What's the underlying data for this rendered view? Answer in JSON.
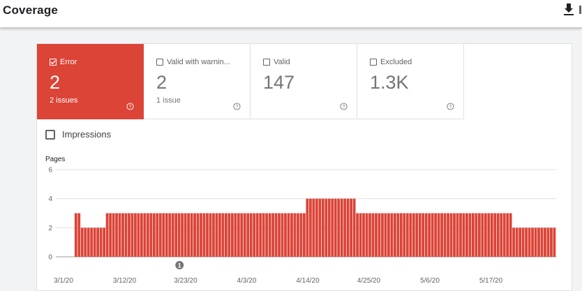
{
  "header": {
    "title": "Coverage",
    "download_icon": "download-icon"
  },
  "tiles": [
    {
      "label": "Error",
      "value": "2",
      "sub": "2 issues",
      "checked": true
    },
    {
      "label": "Valid with warnin...",
      "value": "2",
      "sub": "1 issue",
      "checked": false
    },
    {
      "label": "Valid",
      "value": "147",
      "sub": "",
      "checked": false
    },
    {
      "label": "Excluded",
      "value": "1.3K",
      "sub": "",
      "checked": false
    }
  ],
  "impressions": {
    "label": "Impressions",
    "checked": false
  },
  "colors": {
    "error": "#db4437",
    "grid": "#e0e0e0",
    "text": "#5f6368"
  },
  "chart_data": {
    "type": "bar",
    "ylabel": "Pages",
    "ylim": [
      0,
      6
    ],
    "yticks": [
      0,
      2,
      4,
      6
    ],
    "xtick_labels": [
      "3/1/20",
      "3/12/20",
      "3/23/20",
      "4/3/20",
      "4/14/20",
      "4/25/20",
      "5/6/20",
      "5/17/20"
    ],
    "annotation": {
      "label": "1",
      "date": "3/22/20"
    },
    "series": [
      {
        "color": "#db4437",
        "values": [
          0,
          0,
          0,
          0,
          0,
          0,
          3,
          3,
          2,
          2,
          2,
          2,
          2,
          2,
          2,
          2,
          3,
          3,
          3,
          3,
          3,
          3,
          3,
          3,
          3,
          3,
          3,
          3,
          3,
          3,
          3,
          3,
          3,
          3,
          3,
          3,
          3,
          3,
          3,
          3,
          3,
          3,
          3,
          3,
          3,
          3,
          3,
          3,
          3,
          3,
          3,
          3,
          3,
          3,
          3,
          3,
          3,
          3,
          3,
          3,
          3,
          3,
          3,
          3,
          3,
          3,
          3,
          3,
          3,
          3,
          3,
          3,
          3,
          3,
          3,
          3,
          3,
          3,
          3,
          3,
          4,
          4,
          4,
          4,
          4,
          4,
          4,
          4,
          4,
          4,
          4,
          4,
          4,
          4,
          4,
          4,
          3,
          3,
          3,
          3,
          3,
          3,
          3,
          3,
          3,
          3,
          3,
          3,
          3,
          3,
          3,
          3,
          3,
          3,
          3,
          3,
          3,
          3,
          3,
          3,
          3,
          3,
          3,
          3,
          3,
          3,
          3,
          3,
          3,
          3,
          3,
          3,
          3,
          3,
          3,
          3,
          3,
          3,
          3,
          3,
          3,
          3,
          3,
          3,
          3,
          3,
          2,
          2,
          2,
          2,
          2,
          2,
          2,
          2,
          2,
          2,
          2,
          2,
          2,
          2
        ]
      }
    ]
  }
}
